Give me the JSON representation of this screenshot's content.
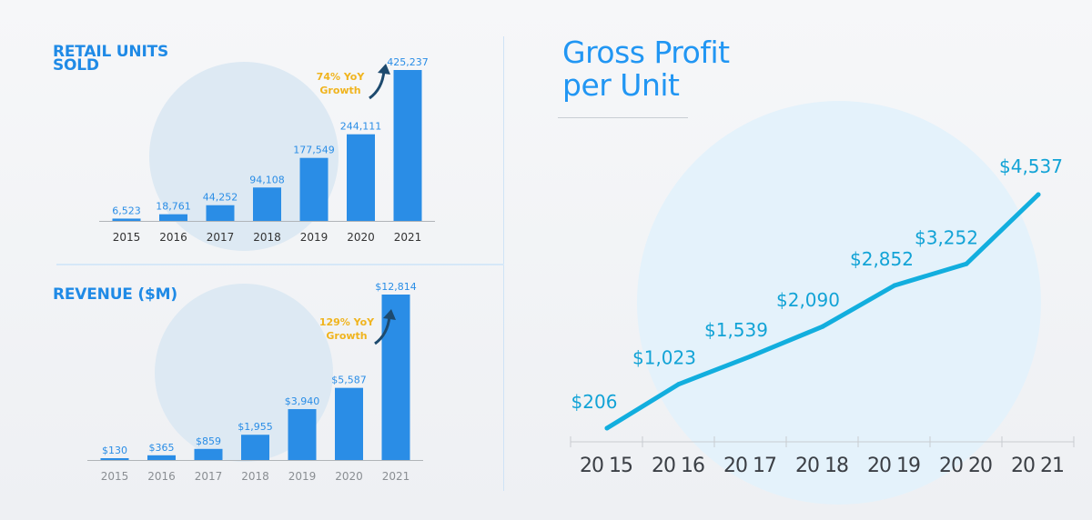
{
  "chart_data": [
    {
      "type": "bar",
      "title": "RETAIL UNITS SOLD",
      "title_lines": [
        "RETAIL UNITS",
        "SOLD"
      ],
      "categories": [
        "2015",
        "2016",
        "2017",
        "2018",
        "2019",
        "2020",
        "2021"
      ],
      "values": [
        6523,
        18761,
        44252,
        94108,
        177549,
        244111,
        425237
      ],
      "value_labels": [
        "6,523",
        "18,761",
        "44,252",
        "94,108",
        "177,549",
        "244,111",
        "425,237"
      ],
      "annotation": [
        "74% YoY",
        "Growth"
      ],
      "bar_color": "#2a8de6",
      "annotation_color": "#f0b41e"
    },
    {
      "type": "bar",
      "title": "REVENUE ($M)",
      "categories": [
        "2015",
        "2016",
        "2017",
        "2018",
        "2019",
        "2020",
        "2021"
      ],
      "values": [
        130,
        365,
        859,
        1955,
        3940,
        5587,
        12814
      ],
      "value_labels": [
        "$130",
        "$365",
        "$859",
        "$1,955",
        "$3,940",
        "$5,587",
        "$12,814"
      ],
      "annotation": [
        "129% YoY",
        "Growth"
      ],
      "bar_color": "#2a8de6",
      "annotation_color": "#f0b41e"
    },
    {
      "type": "line",
      "title": "Gross Profit per Unit",
      "title_lines": [
        "Gross Profit",
        "per Unit"
      ],
      "x": [
        "2015",
        "2016",
        "2017",
        "2018",
        "2019",
        "2020",
        "2021"
      ],
      "x_labels": [
        "20 15",
        "20 16",
        "20 17",
        "20 18",
        "20 19",
        "20 20",
        "20 21"
      ],
      "values": [
        206,
        1023,
        1539,
        2090,
        2852,
        3252,
        4537
      ],
      "value_labels": [
        "$206",
        "$1,023",
        "$1,539",
        "$2,090",
        "$2,852",
        "$3,252",
        "$4,537"
      ],
      "line_color": "#12aede",
      "title_color": "#2196f3"
    }
  ]
}
